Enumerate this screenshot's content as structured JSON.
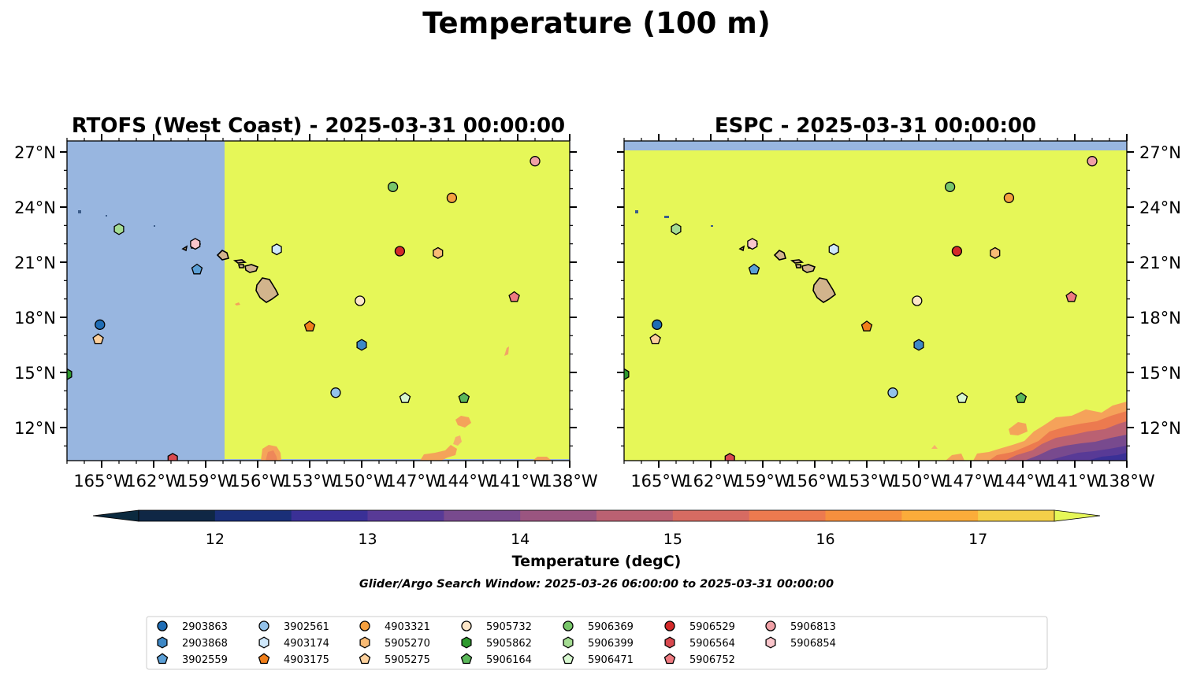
{
  "figure": {
    "title": "Temperature (100 m)",
    "search_window": "Glider/Argo Search Window: 2025-03-26 06:00:00 to 2025-03-31 00:00:00"
  },
  "chart_data": [
    {
      "type": "heatmap",
      "title": "RTOFS (West Coast) - 2025-03-31 00:00:00",
      "xlim": [
        -167,
        -138
      ],
      "ylim": [
        10.2,
        27.6
      ],
      "x_ticks": [
        -165,
        -162,
        -159,
        -156,
        -153,
        -150,
        -147,
        -144,
        -141,
        -138
      ],
      "x_tick_labels": [
        "165°W",
        "162°W",
        "159°W",
        "156°W",
        "153°W",
        "150°W",
        "147°W",
        "144°W",
        "141°W",
        "138°W"
      ],
      "y_ticks": [
        12,
        15,
        18,
        21,
        24,
        27
      ],
      "y_tick_labels": [
        "12°N",
        "15°N",
        "18°N",
        "21°N",
        "24°N",
        "27°N"
      ],
      "y_axis_side": "left",
      "no_data_color": "#98b6e0",
      "no_data_region": {
        "lon": [
          -167,
          -157.9
        ],
        "lat": [
          10.2,
          27.6
        ]
      },
      "dominant_value": "above 17.5 degC"
    },
    {
      "type": "heatmap",
      "title": "ESPC - 2025-03-31 00:00:00",
      "xlim": [
        -167,
        -138
      ],
      "ylim": [
        10.2,
        27.6
      ],
      "x_ticks": [
        -165,
        -162,
        -159,
        -156,
        -153,
        -150,
        -147,
        -144,
        -141,
        -138
      ],
      "x_tick_labels": [
        "165°W",
        "162°W",
        "159°W",
        "156°W",
        "153°W",
        "150°W",
        "147°W",
        "144°W",
        "141°W",
        "138°W"
      ],
      "y_ticks": [
        12,
        15,
        18,
        21,
        24,
        27
      ],
      "y_tick_labels": [
        "12°N",
        "15°N",
        "18°N",
        "21°N",
        "24°N",
        "27°N"
      ],
      "y_axis_side": "right",
      "no_data_color": "#98b6e0",
      "no_data_region": {
        "lon": [
          -167,
          -138
        ],
        "lat": [
          27.1,
          27.6
        ]
      },
      "dominant_value": "above 17.5 degC"
    }
  ],
  "colorbar": {
    "label": "Temperature (degC)",
    "min": 11.5,
    "max": 17.5,
    "step": 0.5,
    "extend": "both",
    "ticks": [
      12,
      13,
      14,
      15,
      16,
      17
    ],
    "tick_labels": [
      "12",
      "13",
      "14",
      "15",
      "16",
      "17"
    ],
    "colors": [
      "#0b2a3f",
      "#0f2745",
      "#1a2f78",
      "#3a3096",
      "#583a96",
      "#784a8e",
      "#9a5580",
      "#ba6172",
      "#d66b62",
      "#ec7a4f",
      "#f68f3e",
      "#fbac3a",
      "#f4cf49"
    ],
    "over_color": "#e6f758",
    "under_color": "#0b2a3f"
  },
  "floats": [
    {
      "id": "2903863",
      "marker": "circle",
      "color": "#1f6db5",
      "lon": -165.1,
      "lat": 17.6
    },
    {
      "id": "2903868",
      "marker": "hexagon",
      "color": "#3e88c6",
      "lon": -150.0,
      "lat": 16.5
    },
    {
      "id": "3902559",
      "marker": "pentagon",
      "color": "#5b9fd6",
      "lon": -159.5,
      "lat": 20.6
    },
    {
      "id": "3902561",
      "marker": "circle",
      "color": "#93c2ea",
      "lon": -151.5,
      "lat": 13.9
    },
    {
      "id": "4903174",
      "marker": "hexagon",
      "color": "#cfe8fb",
      "lon": -154.9,
      "lat": 21.7
    },
    {
      "id": "4903175",
      "marker": "pentagon",
      "color": "#f07e1a",
      "lon": -153.0,
      "lat": 17.5
    },
    {
      "id": "4903321",
      "marker": "circle",
      "color": "#f5a03f",
      "lon": -144.8,
      "lat": 24.5
    },
    {
      "id": "5905270",
      "marker": "hexagon",
      "color": "#f9bb75",
      "lon": -145.6,
      "lat": 21.5
    },
    {
      "id": "5905275",
      "marker": "pentagon",
      "color": "#fcd09c",
      "lon": -165.2,
      "lat": 16.8
    },
    {
      "id": "5905732",
      "marker": "circle",
      "color": "#fde6c8",
      "lon": -150.1,
      "lat": 18.9
    },
    {
      "id": "5905862",
      "marker": "hexagon",
      "color": "#2e9a2e",
      "lon": -167.0,
      "lat": 14.9
    },
    {
      "id": "5906164",
      "marker": "pentagon",
      "color": "#5bb85a",
      "lon": -144.1,
      "lat": 13.6
    },
    {
      "id": "5906369",
      "marker": "circle",
      "color": "#78c66a",
      "lon": -148.2,
      "lat": 25.1
    },
    {
      "id": "5906399",
      "marker": "hexagon",
      "color": "#a4dc92",
      "lon": -164.0,
      "lat": 22.8
    },
    {
      "id": "5906471",
      "marker": "pentagon",
      "color": "#d7f7cf",
      "lon": -147.5,
      "lat": 13.6
    },
    {
      "id": "5906529",
      "marker": "circle",
      "color": "#d42a2a",
      "lon": -147.8,
      "lat": 21.6
    },
    {
      "id": "5906564",
      "marker": "hexagon",
      "color": "#d9494f",
      "lon": -160.9,
      "lat": 10.3
    },
    {
      "id": "5906752",
      "marker": "pentagon",
      "color": "#ee7a80",
      "lon": -141.2,
      "lat": 19.1
    },
    {
      "id": "5906813",
      "marker": "circle",
      "color": "#f0a0a6",
      "lon": -140.0,
      "lat": 26.5
    },
    {
      "id": "5906854",
      "marker": "hexagon",
      "color": "#fac5cb",
      "lon": -159.6,
      "lat": 22.0
    }
  ]
}
